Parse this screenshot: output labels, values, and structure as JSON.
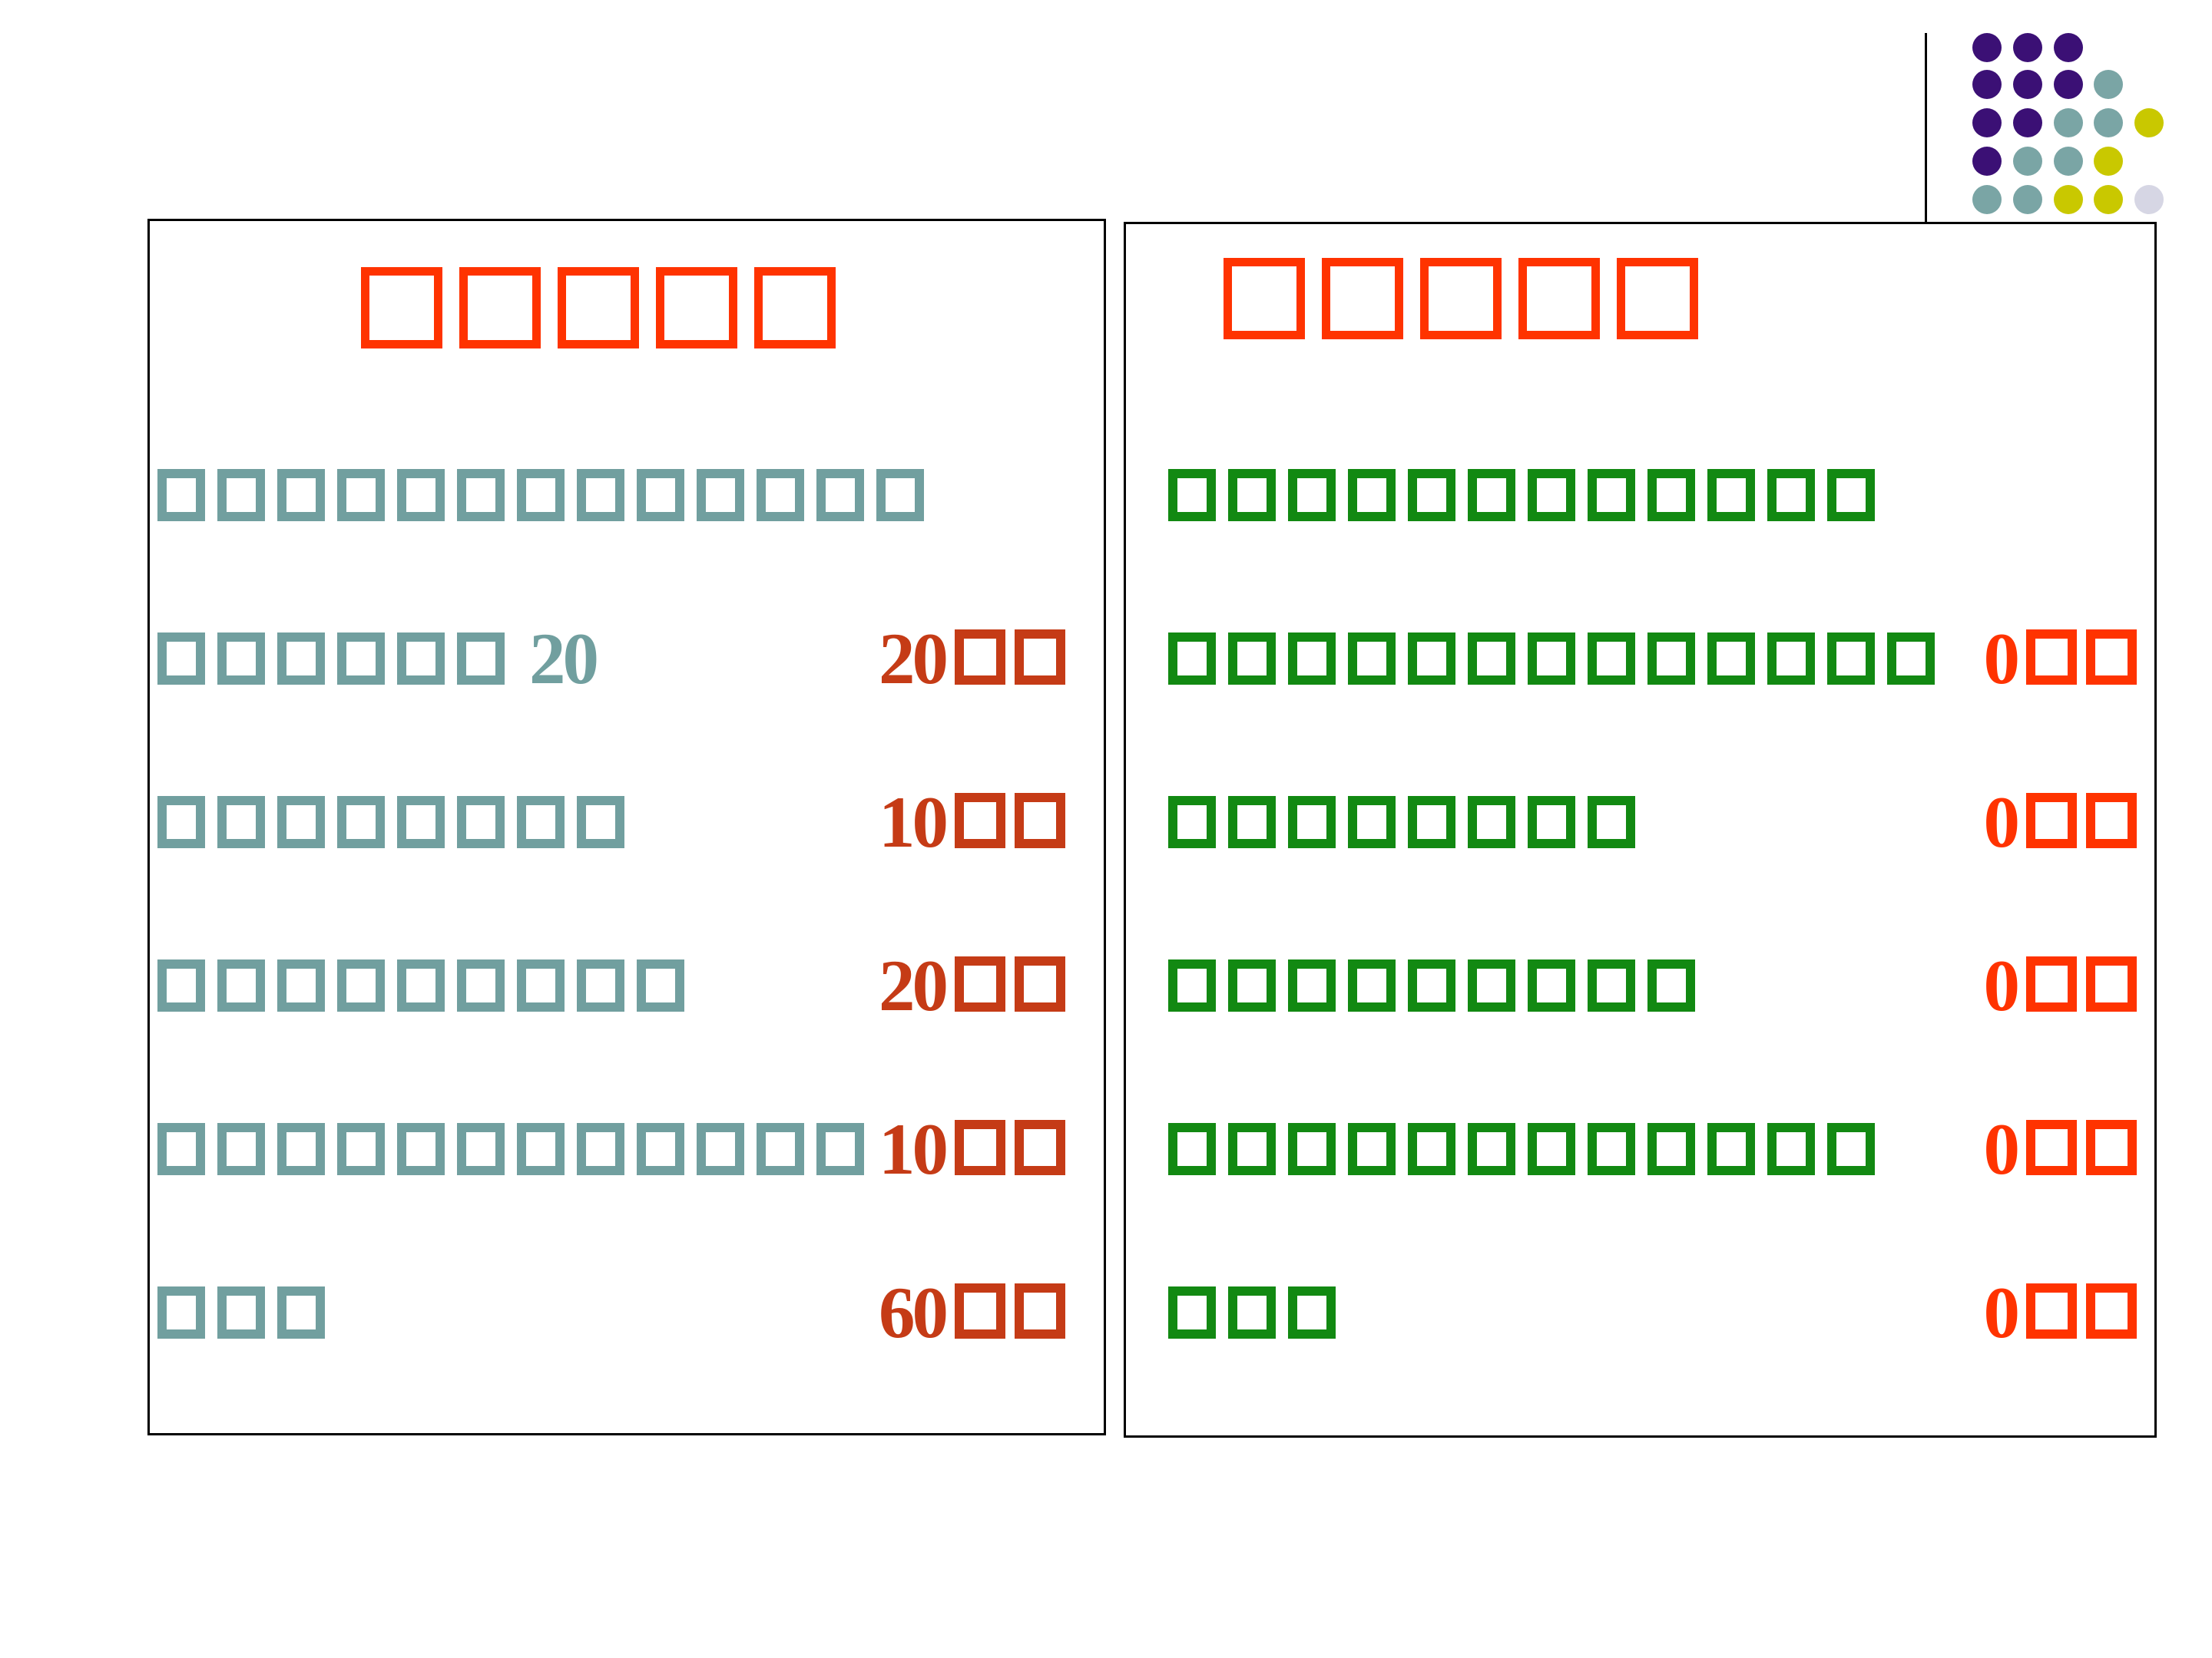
{
  "slide": {
    "background": "#FFFFFF",
    "description": "presentation slide with two bordered text panels; CJK glyphs failed to render and appear as hollow placeholder boxes"
  },
  "palette": {
    "title_red": "#FF3300",
    "left_text_teal": "#719F9F",
    "left_number_red": "#C53B16",
    "right_text_green": "#128912",
    "right_number_red": "#FF3300",
    "border_black": "#000000",
    "dot_purple": "#3B1075",
    "dot_teal": "#7AA5A5",
    "dot_yellow": "#C9C800",
    "dot_lavender": "#D6D6E4"
  },
  "decor": {
    "dots_pattern": [
      "PPP..",
      "PPPT.",
      "PPTTY",
      "PTTY.",
      "TTYYL",
      "TYYL.",
      "YYLL.",
      ".L.L."
    ],
    "dot_color_keys": {
      "P": "dot_purple",
      "T": "dot_teal",
      "Y": "dot_yellow",
      "L": "dot_lavender"
    }
  },
  "left_panel": {
    "title": {
      "missing_glyph_count": 5,
      "placeholder_text": "□□□□□"
    },
    "rows": [
      {
        "missing_glyph_count": 13,
        "inline_number": "",
        "number": "",
        "number_glyph_count": 0
      },
      {
        "missing_glyph_count": 6,
        "inline_number": "20",
        "number": "20",
        "number_glyph_count": 2
      },
      {
        "missing_glyph_count": 8,
        "inline_number": "",
        "number": "10",
        "number_glyph_count": 2
      },
      {
        "missing_glyph_count": 9,
        "inline_number": "",
        "number": "20",
        "number_glyph_count": 2
      },
      {
        "missing_glyph_count": 12,
        "inline_number": "",
        "number": "10",
        "number_glyph_count": 2
      },
      {
        "missing_glyph_count": 3,
        "inline_number": "",
        "number": "60",
        "number_glyph_count": 2
      }
    ]
  },
  "right_panel": {
    "title": {
      "missing_glyph_count": 5,
      "placeholder_text": "□□□□□"
    },
    "rows": [
      {
        "missing_glyph_count": 12,
        "inline_number": "",
        "number": "",
        "number_glyph_count": 0
      },
      {
        "missing_glyph_count": 13,
        "inline_number": "",
        "number": "0",
        "number_glyph_count": 2
      },
      {
        "missing_glyph_count": 8,
        "inline_number": "",
        "number": "0",
        "number_glyph_count": 2
      },
      {
        "missing_glyph_count": 9,
        "inline_number": "",
        "number": "0",
        "number_glyph_count": 2
      },
      {
        "missing_glyph_count": 12,
        "inline_number": "",
        "number": "0",
        "number_glyph_count": 2
      },
      {
        "missing_glyph_count": 3,
        "inline_number": "",
        "number": "0",
        "number_glyph_count": 2
      }
    ]
  }
}
